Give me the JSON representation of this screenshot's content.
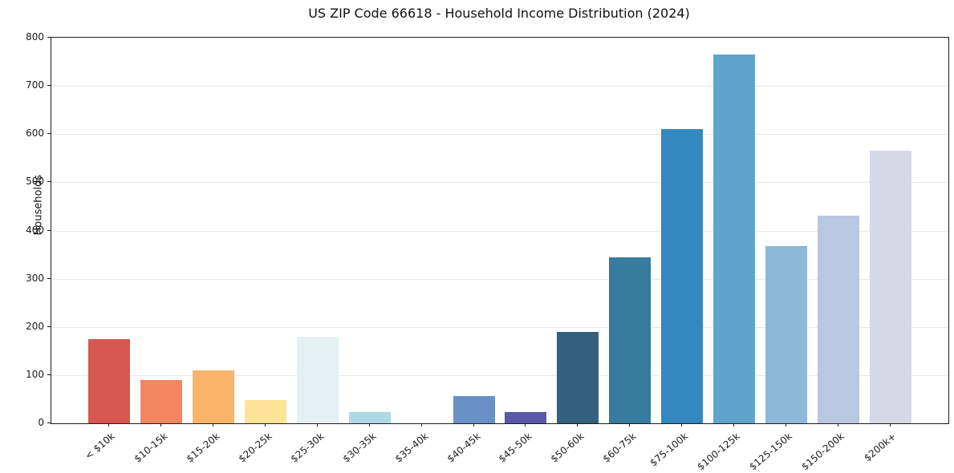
{
  "chart_data": {
    "type": "bar",
    "title": "US ZIP Code 66618 - Household Income Distribution (2024)",
    "xlabel": "",
    "ylabel": "Households",
    "ylim": [
      0,
      800
    ],
    "yticks": [
      0,
      100,
      200,
      300,
      400,
      500,
      600,
      700,
      800
    ],
    "grid": true,
    "legend": false,
    "categories": [
      "< $10k",
      "$10-15k",
      "$15-20k",
      "$20-25k",
      "$25-30k",
      "$30-35k",
      "$35-40k",
      "$40-45k",
      "$45-50k",
      "$50-60k",
      "$60-75k",
      "$75-100k",
      "$100-125k",
      "$125-150k",
      "$150-200k",
      "$200k+"
    ],
    "values": [
      175,
      90,
      110,
      48,
      180,
      23,
      0,
      57,
      24,
      190,
      345,
      610,
      765,
      368,
      430,
      565
    ],
    "bar_colors": [
      "#d65850",
      "#f4865f",
      "#f9b469",
      "#fde395",
      "#e4f1f3",
      "#aed8e6",
      "transparent",
      "#6a91c5",
      "#5a58a7",
      "#34607e",
      "#377b9e",
      "#3389bd",
      "#5fa5cb",
      "#8db8d8",
      "#b7c8e0",
      "#d6d8e8"
    ],
    "axis_color": "#1c1c1c",
    "grid_color": "#e8e8e8"
  }
}
